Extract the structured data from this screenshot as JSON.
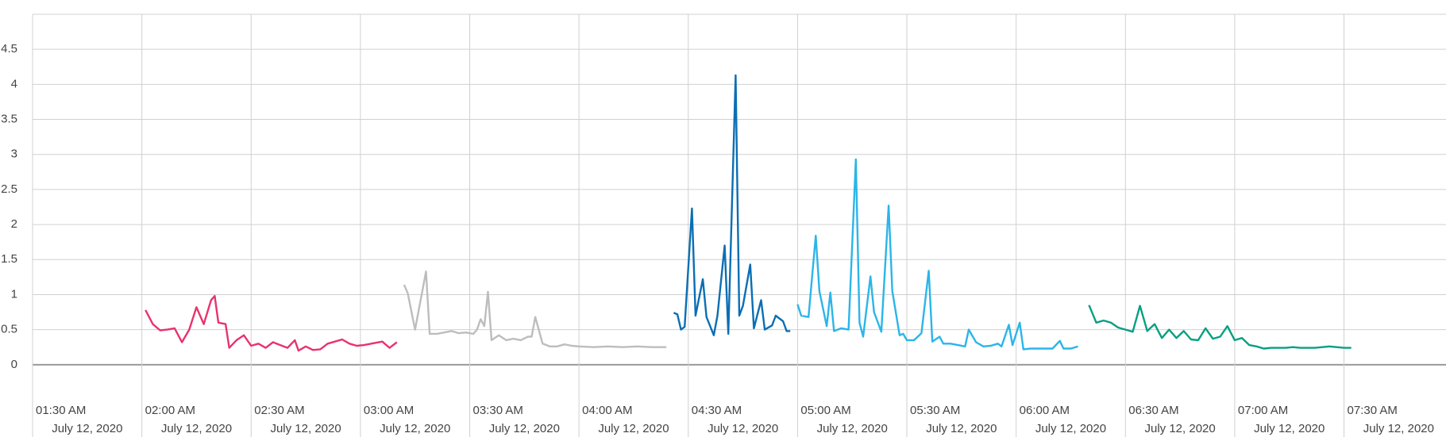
{
  "chart_data": {
    "type": "line",
    "xlim": [
      "01:30",
      "07:58"
    ],
    "xticks": [
      {
        "value": "01:30",
        "label": "01:30 AM"
      },
      {
        "value": "02:00",
        "label": "02:00 AM"
      },
      {
        "value": "02:30",
        "label": "02:30 AM"
      },
      {
        "value": "03:00",
        "label": "03:00 AM"
      },
      {
        "value": "03:30",
        "label": "03:30 AM"
      },
      {
        "value": "04:00",
        "label": "04:00 AM"
      },
      {
        "value": "04:30",
        "label": "04:30 AM"
      },
      {
        "value": "05:00",
        "label": "05:00 AM"
      },
      {
        "value": "05:30",
        "label": "05:30 AM"
      },
      {
        "value": "06:00",
        "label": "06:00 AM"
      },
      {
        "value": "06:30",
        "label": "06:30 AM"
      },
      {
        "value": "07:00",
        "label": "07:00 AM"
      },
      {
        "value": "07:30",
        "label": "07:30 AM"
      }
    ],
    "xtick_dates": [
      "July 12, 2020",
      "July 12, 2020",
      "July 12, 2020",
      "July 12, 2020",
      "July 12, 2020",
      "July 12, 2020",
      "July 12, 2020",
      "July 12, 2020",
      "July 12, 2020",
      "July 12, 2020",
      "July 12, 2020",
      "July 12, 2020",
      "July 12, 2020"
    ],
    "ylim": [
      -0.5,
      5
    ],
    "yticks": [
      0,
      0.5,
      1,
      1.5,
      2,
      2.5,
      3,
      3.5,
      4,
      4.5
    ],
    "grid": true,
    "series": [
      {
        "color": "#e8336d",
        "x": [
          "02:01",
          "02:03",
          "02:05",
          "02:07",
          "02:09",
          "02:11",
          "02:13",
          "02:15",
          "02:17",
          "02:19",
          "02:20",
          "02:21",
          "02:23",
          "02:24",
          "02:26",
          "02:28",
          "02:30",
          "02:32",
          "02:34",
          "02:36",
          "02:38",
          "02:40",
          "02:42",
          "02:43",
          "02:45",
          "02:47",
          "02:49",
          "02:51",
          "02:53",
          "02:55",
          "02:57",
          "02:59",
          "03:01",
          "03:03",
          "03:06",
          "03:08",
          "03:10"
        ],
        "values": [
          0.78,
          0.58,
          0.49,
          0.5,
          0.52,
          0.32,
          0.5,
          0.82,
          0.58,
          0.92,
          0.98,
          0.6,
          0.58,
          0.24,
          0.35,
          0.42,
          0.27,
          0.3,
          0.24,
          0.32,
          0.28,
          0.24,
          0.35,
          0.2,
          0.26,
          0.21,
          0.22,
          0.3,
          0.33,
          0.36,
          0.3,
          0.27,
          0.28,
          0.3,
          0.33,
          0.24,
          0.32
        ]
      },
      {
        "color": "#bdbdbd",
        "x": [
          "03:12",
          "03:13",
          "03:15",
          "03:18",
          "03:19",
          "03:21",
          "03:23",
          "03:25",
          "03:27",
          "03:29",
          "03:31",
          "03:32",
          "03:33",
          "03:34",
          "03:35",
          "03:36",
          "03:38",
          "03:40",
          "03:42",
          "03:44",
          "03:46",
          "03:47",
          "03:48",
          "03:50",
          "03:52",
          "03:54",
          "03:56",
          "03:58",
          "04:00",
          "04:04",
          "04:08",
          "04:12",
          "04:16",
          "04:20",
          "04:24"
        ],
        "values": [
          1.14,
          1.02,
          0.5,
          1.33,
          0.44,
          0.44,
          0.46,
          0.48,
          0.45,
          0.46,
          0.44,
          0.5,
          0.65,
          0.55,
          1.04,
          0.35,
          0.42,
          0.35,
          0.37,
          0.35,
          0.4,
          0.4,
          0.68,
          0.3,
          0.26,
          0.26,
          0.29,
          0.27,
          0.26,
          0.25,
          0.26,
          0.25,
          0.26,
          0.25,
          0.25
        ]
      },
      {
        "color": "#0a6eb4",
        "x": [
          "04:26",
          "04:27",
          "04:28",
          "04:29",
          "04:31",
          "04:32",
          "04:34",
          "04:35",
          "04:37",
          "04:38",
          "04:40",
          "04:41",
          "04:43",
          "04:44",
          "04:45",
          "04:47",
          "04:48",
          "04:50",
          "04:51",
          "04:53",
          "04:54",
          "04:56",
          "04:57",
          "04:58"
        ],
        "values": [
          0.74,
          0.72,
          0.5,
          0.54,
          2.23,
          0.7,
          1.22,
          0.68,
          0.42,
          0.7,
          1.7,
          0.44,
          4.13,
          0.7,
          0.84,
          1.43,
          0.52,
          0.92,
          0.5,
          0.56,
          0.7,
          0.62,
          0.48,
          0.48
        ]
      },
      {
        "color": "#2bb5e8",
        "x": [
          "05:00",
          "05:01",
          "05:03",
          "05:05",
          "05:06",
          "05:08",
          "05:09",
          "05:10",
          "05:12",
          "05:14",
          "05:16",
          "05:17",
          "05:18",
          "05:20",
          "05:21",
          "05:23",
          "05:25",
          "05:26",
          "05:28",
          "05:29",
          "05:30",
          "05:32",
          "05:34",
          "05:36",
          "05:37",
          "05:39",
          "05:40",
          "05:42",
          "05:44",
          "05:46",
          "05:47",
          "05:49",
          "05:51",
          "05:53",
          "05:55",
          "05:56",
          "05:58",
          "05:59",
          "06:01",
          "06:02",
          "06:04",
          "06:06",
          "06:08",
          "06:10",
          "06:12",
          "06:13",
          "06:15",
          "06:17"
        ],
        "values": [
          0.86,
          0.7,
          0.68,
          1.84,
          1.05,
          0.55,
          1.03,
          0.48,
          0.52,
          0.5,
          2.93,
          0.6,
          0.4,
          1.26,
          0.75,
          0.47,
          2.27,
          1.05,
          0.42,
          0.44,
          0.35,
          0.35,
          0.45,
          1.34,
          0.33,
          0.4,
          0.3,
          0.3,
          0.28,
          0.26,
          0.5,
          0.32,
          0.26,
          0.27,
          0.3,
          0.26,
          0.57,
          0.28,
          0.6,
          0.22,
          0.23,
          0.23,
          0.23,
          0.23,
          0.34,
          0.23,
          0.23,
          0.26
        ]
      },
      {
        "color": "#089f82",
        "x": [
          "06:20",
          "06:22",
          "06:24",
          "06:26",
          "06:28",
          "06:30",
          "06:32",
          "06:34",
          "06:36",
          "06:38",
          "06:40",
          "06:42",
          "06:44",
          "06:46",
          "06:48",
          "06:50",
          "06:52",
          "06:54",
          "06:56",
          "06:58",
          "07:00",
          "07:02",
          "07:04",
          "07:06",
          "07:08",
          "07:10",
          "07:12",
          "07:14",
          "07:16",
          "07:18",
          "07:20",
          "07:22",
          "07:24",
          "07:26",
          "07:28",
          "07:30",
          "07:32"
        ],
        "values": [
          0.85,
          0.6,
          0.63,
          0.6,
          0.53,
          0.5,
          0.47,
          0.84,
          0.48,
          0.58,
          0.38,
          0.5,
          0.38,
          0.48,
          0.36,
          0.35,
          0.52,
          0.37,
          0.4,
          0.55,
          0.35,
          0.38,
          0.28,
          0.26,
          0.23,
          0.24,
          0.24,
          0.24,
          0.25,
          0.24,
          0.24,
          0.24,
          0.25,
          0.26,
          0.25,
          0.24,
          0.24
        ]
      }
    ]
  }
}
